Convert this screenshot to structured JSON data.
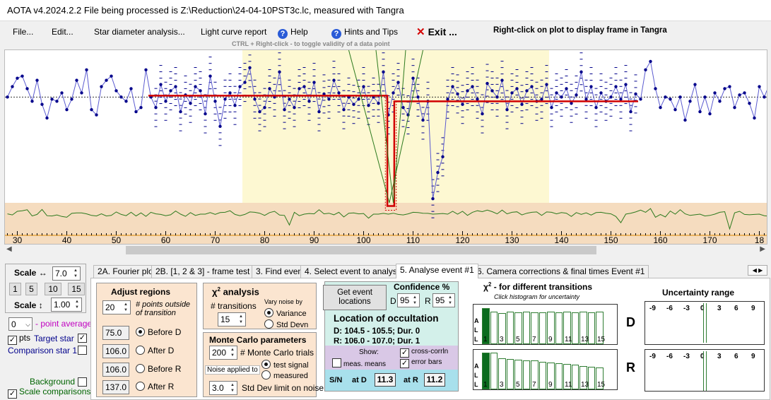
{
  "window": {
    "title": "AOTA v4.2024.2.2    File being processed is Z:\\Reduction\\24-04-10PST3c.lc, measured with Tangra"
  },
  "menu": {
    "file": "File...",
    "edit": "Edit...",
    "star_diameter": "Star diameter analysis...",
    "light_curve_report": "Light curve report",
    "help": "Help",
    "hints": "Hints and Tips",
    "exit": "Exit ...",
    "right_click_hint": "Right-click on plot to display frame in Tangra",
    "ctrl_hint": "CTRL + Right-click  -  to toggle validity of a data point"
  },
  "plot": {
    "x_ticks": [
      "30",
      "40",
      "50",
      "60",
      "70",
      "80",
      "90",
      "100",
      "110",
      "120",
      "130",
      "140",
      "150",
      "160",
      "170",
      "18"
    ],
    "x_min": 27.5,
    "x_max": 181.5,
    "highlight_range": [
      75.5,
      137.5
    ],
    "colors": {
      "highlight": "#fdf8d2",
      "lower_band": "#f5dcbf",
      "data": "#00008b",
      "fit": "#d00000",
      "corr": "#2d7a1e"
    }
  },
  "chart_data": {
    "type": "line",
    "x_start": 28,
    "values": [
      0.62,
      0.72,
      0.8,
      0.82,
      0.7,
      0.58,
      0.78,
      0.55,
      0.42,
      0.6,
      0.58,
      0.66,
      0.5,
      0.6,
      0.78,
      0.66,
      0.88,
      0.5,
      0.45,
      0.72,
      0.78,
      0.82,
      0.68,
      0.62,
      0.58,
      0.7,
      0.48,
      0.52,
      0.88,
      0.62,
      0.52,
      0.74,
      0.58,
      0.68,
      0.72,
      0.48,
      0.64,
      0.56,
      0.72,
      0.68,
      0.46,
      0.82,
      0.58,
      0.34,
      0.6,
      0.66,
      0.54,
      0.72,
      0.76,
      0.9,
      0.6,
      0.48,
      0.52,
      0.7,
      0.62,
      0.86,
      0.5,
      0.6,
      0.52,
      0.7,
      0.72,
      0.58,
      0.76,
      0.48,
      0.65,
      0.6,
      0.78,
      0.66,
      0.5,
      0.62,
      0.55,
      0.6,
      0.72,
      0.54,
      0.62,
      0.56,
      0.86,
      0.45,
      0.66,
      0.76,
      0.52,
      0.45,
      0.8,
      0.62,
      0.4,
      0.58,
      -0.35,
      -0.1,
      0.05,
      0.6,
      0.72,
      0.65,
      0.55,
      0.68,
      0.72,
      0.6,
      0.46,
      0.75,
      0.68,
      0.62,
      0.78,
      0.5,
      0.66,
      0.7,
      0.55,
      0.68,
      0.72,
      0.58,
      0.6,
      0.74,
      0.52,
      0.66,
      0.62,
      0.7,
      0.56,
      0.64,
      0.86,
      0.6,
      0.72,
      0.52,
      0.66,
      0.58,
      0.62,
      0.72,
      0.6,
      0.74,
      0.48,
      0.65,
      0.6,
      0.88,
      0.96,
      0.7,
      0.52,
      0.62,
      0.6,
      0.5,
      0.62,
      0.4,
      0.58,
      0.74,
      0.48,
      0.62,
      0.46,
      0.66,
      0.58,
      0.7,
      0.72,
      0.52,
      0.64,
      0.66,
      0.56,
      0.42,
      0.72,
      0.62,
      0.74,
      0.6
    ]
  },
  "scale": {
    "h_label": "Scale ↔",
    "h_value": "7.0",
    "steps": [
      "1",
      "5",
      "10",
      "15"
    ],
    "v_label": "Scale ↕",
    "v_value": "1.00"
  },
  "left": {
    "point_avg_value": "0",
    "point_avg_label": "- point average",
    "pts_label": "pts",
    "target_star": "Target star",
    "comparison_star": "Comparison star 1",
    "background": "Background",
    "scale_comparisons": "Scale comparisons"
  },
  "tabs": [
    {
      "label": "2A. Fourier plot"
    },
    {
      "label": "2B. [1, 2 & 3] - frame test"
    },
    {
      "label": "3. Find events"
    },
    {
      "label": "4. Select event to analyse"
    },
    {
      "label": "5. Analyse event #1"
    },
    {
      "label": "6. Camera corrections & final times Event #1"
    }
  ],
  "adjust": {
    "title": "Adjust regions",
    "points_value": "20",
    "points_label": "# points outside of transition",
    "before_d": "75.0",
    "before_d_label": "Before D",
    "after_d": "106.0",
    "after_d_label": "After D",
    "before_r": "106.0",
    "before_r_label": "Before R",
    "after_r": "137.0",
    "after_r_label": "After R"
  },
  "chi": {
    "title": "analysis",
    "chi": "χ",
    "sup": "2",
    "transitions_label": "# transitions",
    "transitions_value": "15",
    "vary_label": "Vary noise by",
    "variance": "Variance",
    "std": "Std Devn"
  },
  "monte": {
    "title": "Monte Carlo parameters",
    "trials_value": "200",
    "trials_label": "# Monte Carlo trials",
    "noise_label": "Noise applied to",
    "test_signal": "test signal",
    "measured": "measured",
    "std_value": "3.0",
    "std_label": "Std Dev limit on noise"
  },
  "event": {
    "get_line1": "Get event",
    "get_line2": "locations",
    "conf_title": "Confidence %",
    "d_label": "D",
    "d_value": "95",
    "r_label": "R",
    "r_value": "95",
    "loc_title": "Location of occultation",
    "d_line": "D: 104.5 - 105.5; Dur. 0",
    "r_line": "R: 106.0 - 107.0; Dur. 1",
    "show": "Show:",
    "cross_corr": "cross-corrln",
    "meas_means": "meas. means",
    "error_bars": "error bars",
    "sn": "S/N",
    "at_d": "at D",
    "at_d_val": "11.3",
    "at_r": "at R",
    "at_r_val": "11.2"
  },
  "hist": {
    "title": " - for different transitions",
    "chi": "χ",
    "sup": "2",
    "subtitle": "Click histogram for uncertainty",
    "labels": [
      "1",
      "3",
      "5",
      "7",
      "9",
      "11",
      "13",
      "15"
    ],
    "axis": [
      "A",
      "L",
      "L"
    ],
    "d_letter": "D",
    "r_letter": "R",
    "d_values": [
      0.95,
      0.85,
      0.82,
      0.86,
      0.84,
      0.85,
      0.84,
      0.83,
      0.85,
      0.84,
      0.86,
      0.84,
      0.85,
      0.84,
      0.85
    ],
    "r_values": [
      0.97,
      0.97,
      0.82,
      0.8,
      0.78,
      0.76,
      0.75,
      0.72,
      0.7,
      0.68,
      0.66,
      0.64,
      0.62,
      0.6,
      0.58
    ]
  },
  "uncertainty": {
    "title": "Uncertainty range",
    "ticks": [
      "-9",
      "-6",
      "-3",
      "0",
      "3",
      "6",
      "9"
    ]
  }
}
